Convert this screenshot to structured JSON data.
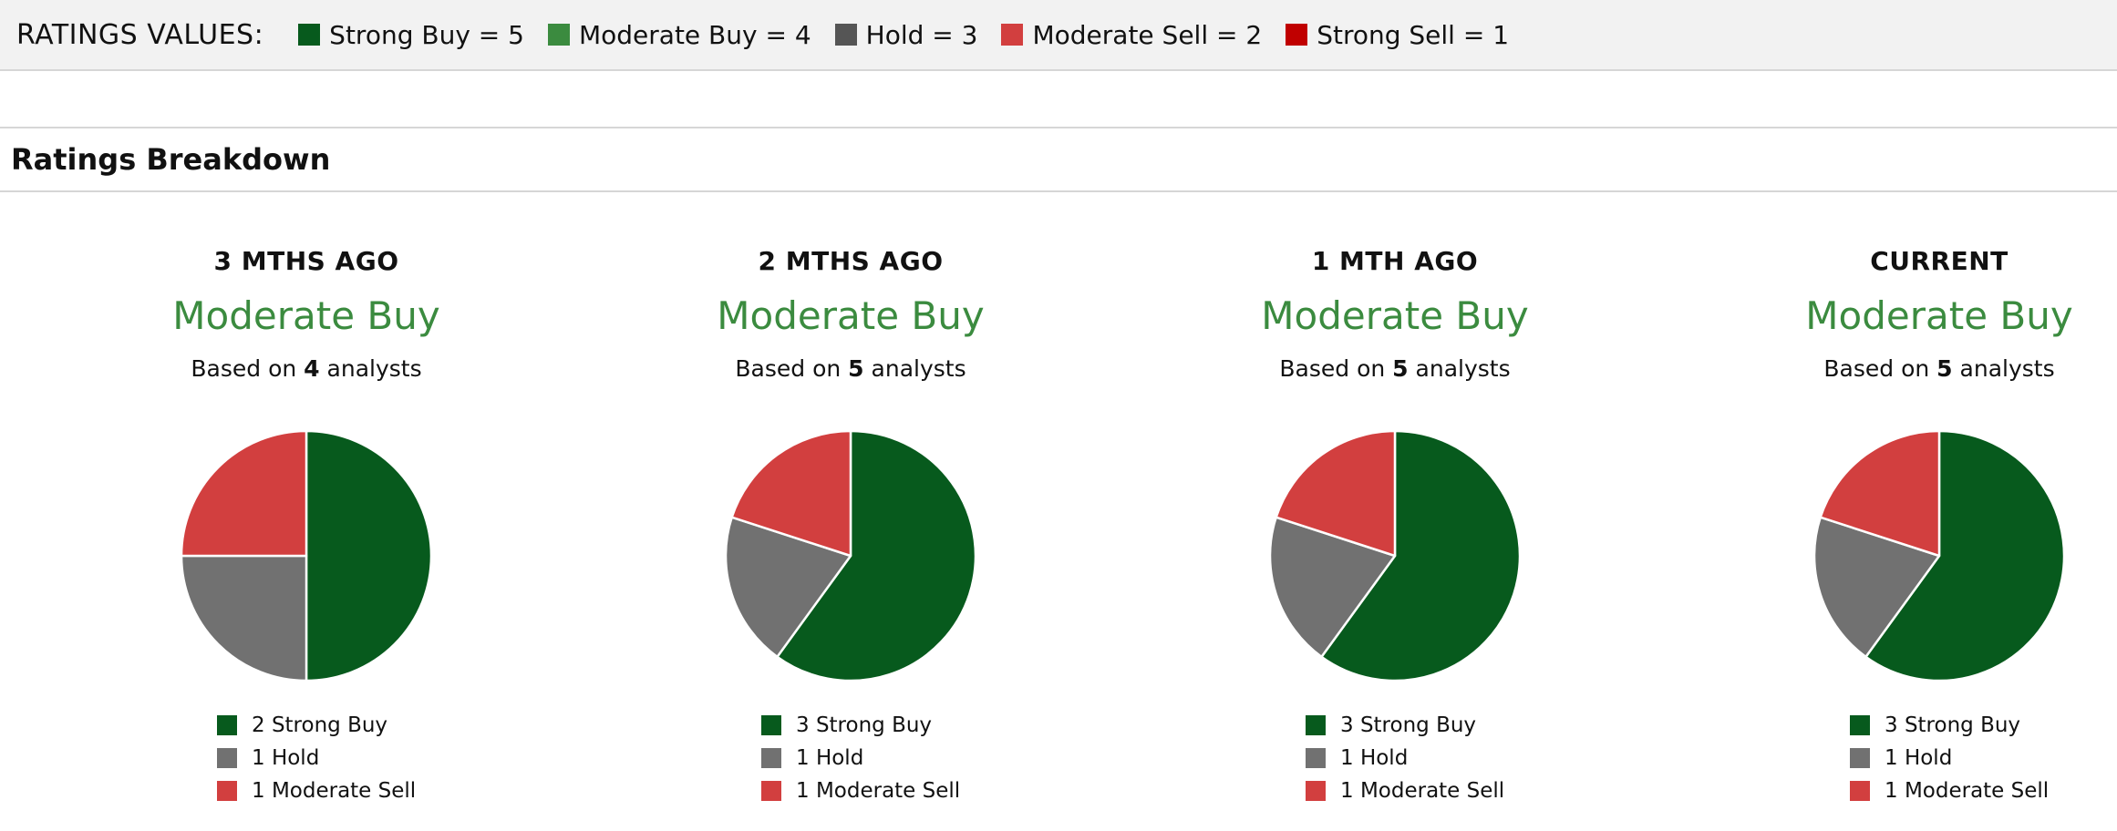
{
  "legend": {
    "title": "RATINGS VALUES:",
    "items": [
      {
        "label": "Strong Buy = 5",
        "color": "#075a1d"
      },
      {
        "label": "Moderate Buy = 4",
        "color": "#3b8b3f"
      },
      {
        "label": "Hold = 3",
        "color": "#555555"
      },
      {
        "label": "Moderate Sell = 2",
        "color": "#d23f3f"
      },
      {
        "label": "Strong Sell = 1",
        "color": "#c00000"
      }
    ]
  },
  "section_title": "Ratings Breakdown",
  "panels": [
    {
      "period": "3 MTHS AGO",
      "consensus": "Moderate Buy",
      "based_prefix": "Based on",
      "analysts": "4",
      "based_suffix": "analysts",
      "legend": [
        "2 Strong Buy",
        "1 Hold",
        "1 Moderate Sell"
      ]
    },
    {
      "period": "2 MTHS AGO",
      "consensus": "Moderate Buy",
      "based_prefix": "Based on",
      "analysts": "5",
      "based_suffix": "analysts",
      "legend": [
        "3 Strong Buy",
        "1 Hold",
        "1 Moderate Sell"
      ]
    },
    {
      "period": "1 MTH AGO",
      "consensus": "Moderate Buy",
      "based_prefix": "Based on",
      "analysts": "5",
      "based_suffix": "analysts",
      "legend": [
        "3 Strong Buy",
        "1 Hold",
        "1 Moderate Sell"
      ]
    },
    {
      "period": "CURRENT",
      "consensus": "Moderate Buy",
      "based_prefix": "Based on",
      "analysts": "5",
      "based_suffix": "analysts",
      "legend": [
        "3 Strong Buy",
        "1 Hold",
        "1 Moderate Sell"
      ]
    }
  ],
  "chart_data": [
    {
      "type": "pie",
      "categories": [
        "Strong Buy",
        "Hold",
        "Moderate Sell"
      ],
      "values": [
        2,
        1,
        1
      ],
      "colors": [
        "#075a1d",
        "#717171",
        "#d23f3f"
      ]
    },
    {
      "type": "pie",
      "categories": [
        "Strong Buy",
        "Hold",
        "Moderate Sell"
      ],
      "values": [
        3,
        1,
        1
      ],
      "colors": [
        "#075a1d",
        "#717171",
        "#d23f3f"
      ]
    },
    {
      "type": "pie",
      "categories": [
        "Strong Buy",
        "Hold",
        "Moderate Sell"
      ],
      "values": [
        3,
        1,
        1
      ],
      "colors": [
        "#075a1d",
        "#717171",
        "#d23f3f"
      ]
    },
    {
      "type": "pie",
      "categories": [
        "Strong Buy",
        "Hold",
        "Moderate Sell"
      ],
      "values": [
        3,
        1,
        1
      ],
      "colors": [
        "#075a1d",
        "#717171",
        "#d23f3f"
      ]
    }
  ]
}
